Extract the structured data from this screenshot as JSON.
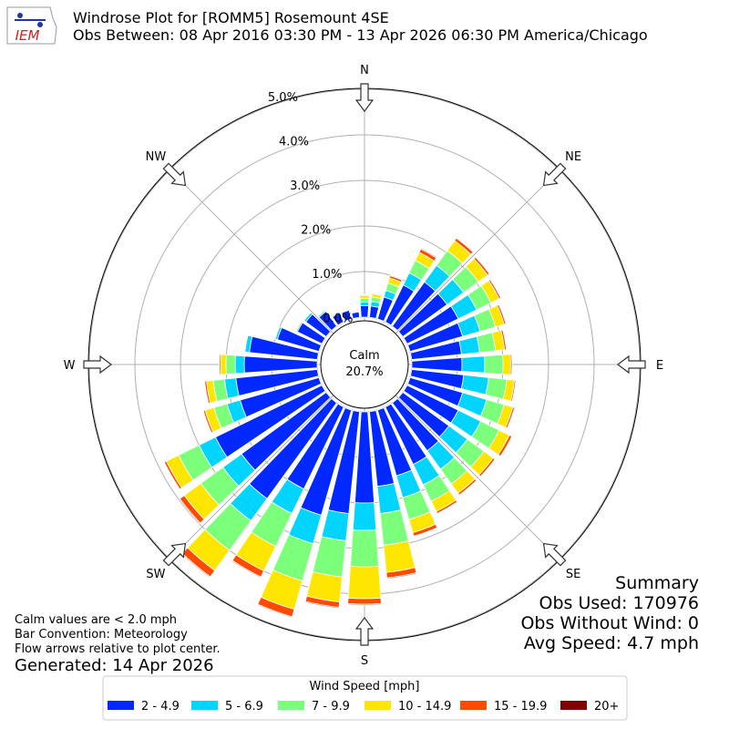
{
  "chart_data": {
    "type": "windrose",
    "title": "Windrose Plot for [ROMM5] Rosemount 4SE",
    "subtitle": "Obs Between: 08 Apr 2016 03:30 PM - 13 Apr 2026 06:30 PM America/Chicago",
    "x": [
      0,
      10,
      20,
      30,
      40,
      50,
      60,
      70,
      80,
      90,
      100,
      110,
      120,
      130,
      140,
      150,
      160,
      170,
      180,
      190,
      200,
      210,
      220,
      230,
      240,
      250,
      260,
      270,
      280,
      290,
      300,
      310,
      320,
      330,
      340,
      350
    ],
    "xticks": [
      {
        "value": 0,
        "label": "N"
      },
      {
        "value": 45,
        "label": "NE"
      },
      {
        "value": 90,
        "label": "E"
      },
      {
        "value": 135,
        "label": "SE"
      },
      {
        "value": 180,
        "label": "S"
      },
      {
        "value": 225,
        "label": "SW"
      },
      {
        "value": 270,
        "label": "W"
      },
      {
        "value": 315,
        "label": "NW"
      }
    ],
    "ylim": [
      0,
      5
    ],
    "yticks": [
      {
        "value": 0,
        "label": "0.0%"
      },
      {
        "value": 1,
        "label": "1.0%"
      },
      {
        "value": 2,
        "label": "2.0%"
      },
      {
        "value": 3,
        "label": "3.0%"
      },
      {
        "value": 4,
        "label": "4.0%"
      },
      {
        "value": 5,
        "label": "5.0%"
      }
    ],
    "grid": true,
    "calm": {
      "label": "Calm",
      "value": 20.7,
      "value_label": "20.7%"
    },
    "legend_title": "Wind Speed [mph]",
    "series": [
      {
        "name": "2 - 4.9",
        "color": "#0028ff",
        "values": [
          0.25,
          0.25,
          0.5,
          0.9,
          1.2,
          1.2,
          1.25,
          1.2,
          1.1,
          1.1,
          1.15,
          1.2,
          1.25,
          1.25,
          1.3,
          1.4,
          1.5,
          1.65,
          2.0,
          2.25,
          2.4,
          2.0,
          2.6,
          2.3,
          2.6,
          1.8,
          1.8,
          1.6,
          1.5,
          0.95,
          0.6,
          0.55,
          0.4,
          0.22,
          0.2,
          0.12
        ]
      },
      {
        "name": "5 - 6.9",
        "color": "#00d4ff",
        "values": [
          0.08,
          0.1,
          0.15,
          0.3,
          0.45,
          0.45,
          0.45,
          0.4,
          0.4,
          0.5,
          0.55,
          0.55,
          0.55,
          0.5,
          0.5,
          0.5,
          0.5,
          0.6,
          0.6,
          0.6,
          0.65,
          0.6,
          0.6,
          0.5,
          0.4,
          0.3,
          0.25,
          0.2,
          0.1,
          0.05,
          0.03,
          0.05,
          0.03,
          0.02,
          0.01,
          0.02
        ]
      },
      {
        "name": "7 - 9.9",
        "color": "#7cff7a",
        "values": [
          0.08,
          0.1,
          0.17,
          0.3,
          0.4,
          0.4,
          0.35,
          0.35,
          0.35,
          0.4,
          0.4,
          0.4,
          0.45,
          0.45,
          0.4,
          0.4,
          0.5,
          0.7,
          0.8,
          0.8,
          0.85,
          0.8,
          0.8,
          0.6,
          0.5,
          0.3,
          0.25,
          0.2,
          0,
          0,
          0,
          0.01,
          0.01,
          0,
          0,
          0.01
        ]
      },
      {
        "name": "10 - 14.9",
        "color": "#ffe600",
        "values": [
          0.06,
          0.07,
          0.12,
          0.2,
          0.27,
          0.25,
          0.2,
          0.2,
          0.2,
          0.17,
          0.17,
          0.2,
          0.25,
          0.25,
          0.25,
          0.25,
          0.3,
          0.6,
          0.7,
          0.55,
          0.65,
          0.6,
          0.55,
          0.45,
          0.3,
          0.2,
          0.15,
          0.12,
          0,
          0,
          0,
          0,
          0,
          0,
          0,
          0
        ]
      },
      {
        "name": "15 - 19.9",
        "color": "#ff4a00",
        "values": [
          0.02,
          0.02,
          0.05,
          0.08,
          0.07,
          0.05,
          0.04,
          0.04,
          0.04,
          0.03,
          0.03,
          0.04,
          0.06,
          0.05,
          0.05,
          0.05,
          0.08,
          0.12,
          0.12,
          0.12,
          0.17,
          0.15,
          0.17,
          0.12,
          0.05,
          0.04,
          0.04,
          0.03,
          0,
          0,
          0,
          0,
          0,
          0,
          0,
          0
        ]
      },
      {
        "name": "20+",
        "color": "#800000",
        "values": [
          0.01,
          0.01,
          0.01,
          0.02,
          0.01,
          0.01,
          0.01,
          0.01,
          0.01,
          0,
          0,
          0.01,
          0.01,
          0,
          0,
          0,
          0.01,
          0.02,
          0.02,
          0.02,
          0.02,
          0.02,
          0.02,
          0.02,
          0,
          0,
          0,
          0,
          0,
          0,
          0,
          0,
          0,
          0,
          0,
          0
        ]
      }
    ]
  },
  "summary": {
    "title": "Summary",
    "lines": [
      "Obs Used: 170976",
      "Obs Without Wind: 0",
      "Avg Speed: 4.7 mph"
    ]
  },
  "notes": [
    "Calm values are < 2.0 mph",
    "Bar Convention: Meteorology",
    "Flow arrows relative to plot center."
  ],
  "generated": "Generated: 14 Apr 2026",
  "logo": "IEM"
}
